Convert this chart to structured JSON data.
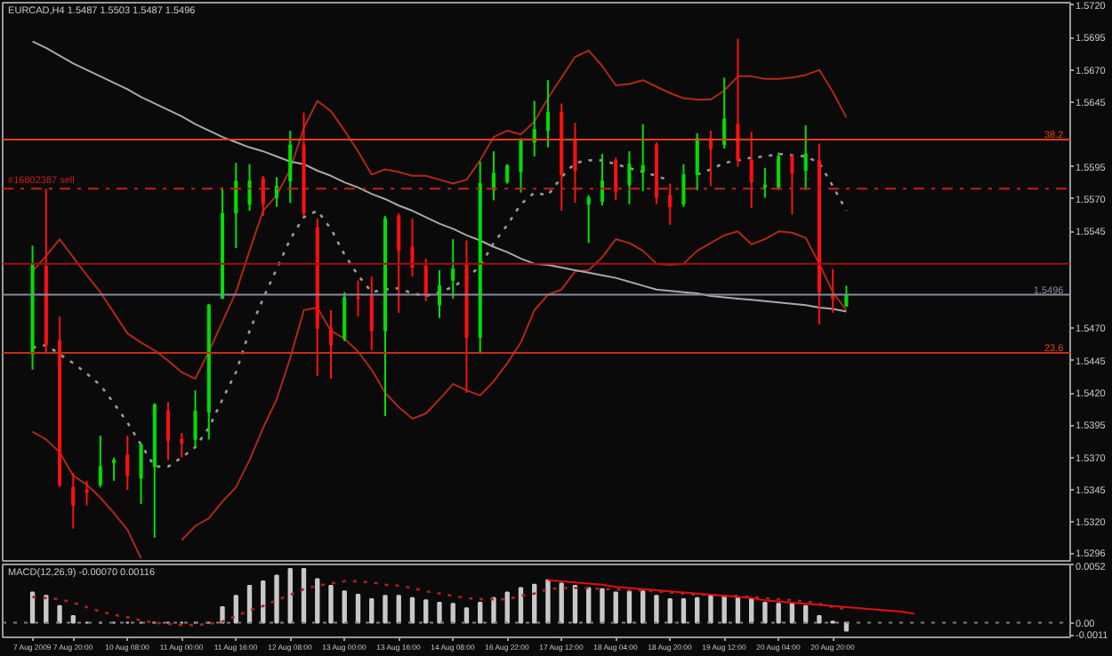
{
  "chart_data": [
    {
      "type": "candlestick",
      "title": "EURCAD,H4  1.5487 1.5503 1.5487 1.5496",
      "tick_labels": "y",
      "categories": [
        null,
        null,
        null,
        null,
        null,
        null,
        null,
        null,
        null,
        null,
        null,
        null,
        null,
        null,
        null,
        null,
        null,
        null,
        null,
        null,
        null,
        null,
        null,
        null,
        null,
        null,
        null,
        null,
        null,
        null,
        null,
        null,
        null,
        null,
        null,
        null,
        null,
        null,
        null,
        null,
        null,
        null,
        null,
        null,
        null,
        null,
        null,
        null,
        null,
        null,
        null,
        null,
        null,
        null,
        null,
        null,
        null,
        null,
        null,
        null,
        null,
        null,
        null,
        null,
        null,
        null,
        null,
        null,
        null,
        null,
        null,
        null,
        null,
        null,
        null,
        null,
        null
      ],
      "ohlc": [
        [
          1.545,
          1.5534,
          1.5438,
          1.552
        ],
        [
          1.5518,
          1.5578,
          1.545,
          1.5457
        ],
        [
          1.5461,
          1.5479,
          1.5347,
          1.5349
        ],
        [
          1.5347,
          1.5358,
          1.5315,
          1.5333
        ],
        [
          1.5345,
          1.5352,
          1.5333,
          1.5343
        ],
        [
          1.5349,
          1.5387,
          1.5347,
          1.5363
        ],
        [
          1.5366,
          1.537,
          1.5352,
          1.5368
        ],
        [
          1.5372,
          1.5387,
          1.5345,
          1.5356
        ],
        [
          1.5354,
          1.5381,
          1.5334,
          1.538
        ],
        [
          1.5363,
          1.5412,
          1.5308,
          1.5411
        ],
        [
          1.5406,
          1.5413,
          1.5368,
          1.5383
        ],
        [
          1.5384,
          1.5389,
          1.537,
          1.5381
        ],
        [
          1.5384,
          1.5422,
          1.5378,
          1.5406
        ],
        [
          1.5405,
          1.5489,
          1.5384,
          1.5488
        ],
        [
          1.5493,
          1.5579,
          1.5493,
          1.5559
        ],
        [
          1.5559,
          1.5598,
          1.5532,
          1.5584
        ],
        [
          1.5566,
          1.5597,
          1.5561,
          1.5584
        ],
        [
          1.5586,
          1.5588,
          1.5557,
          1.5566
        ],
        [
          1.5571,
          1.5587,
          1.5564,
          1.558
        ],
        [
          1.5584,
          1.5623,
          1.5567,
          1.5612
        ],
        [
          1.5612,
          1.5637,
          1.5557,
          1.5559
        ],
        [
          1.5548,
          1.5555,
          1.5433,
          1.547
        ],
        [
          1.547,
          1.5484,
          1.5431,
          1.5457
        ],
        [
          1.5462,
          1.5498,
          1.546,
          1.5494
        ],
        [
          1.5494,
          1.5507,
          1.5479,
          1.5493
        ],
        [
          1.5495,
          1.551,
          1.5453,
          1.5468
        ],
        [
          1.5468,
          1.5557,
          1.5402,
          1.5555
        ],
        [
          1.5557,
          1.5559,
          1.5482,
          1.553
        ],
        [
          1.5533,
          1.5555,
          1.551,
          1.5517
        ],
        [
          1.5518,
          1.5524,
          1.5491,
          1.5495
        ],
        [
          1.5488,
          1.5515,
          1.5478,
          1.5503
        ],
        [
          1.5507,
          1.5539,
          1.5493,
          1.5516
        ],
        [
          1.552,
          1.5538,
          1.542,
          1.5463
        ],
        [
          1.5463,
          1.5599,
          1.545,
          1.5582
        ],
        [
          1.5577,
          1.5607,
          1.5569,
          1.559
        ],
        [
          1.5583,
          1.5597,
          1.5582,
          1.5596
        ],
        [
          1.5591,
          1.5617,
          1.5575,
          1.5615
        ],
        [
          1.5614,
          1.5646,
          1.5603,
          1.5624
        ],
        [
          1.5623,
          1.5662,
          1.561,
          1.5637
        ],
        [
          1.5637,
          1.5644,
          1.5561,
          1.5589
        ],
        [
          1.5616,
          1.5629,
          1.5567,
          1.5592
        ],
        [
          1.5566,
          1.5573,
          1.5536,
          1.5571
        ],
        [
          1.5568,
          1.5605,
          1.5565,
          1.5584
        ],
        [
          1.56,
          1.5602,
          1.5569,
          1.5576
        ],
        [
          1.5581,
          1.5607,
          1.5566,
          1.5597
        ],
        [
          1.5591,
          1.5628,
          1.5576,
          1.5596
        ],
        [
          1.5612,
          1.5614,
          1.5566,
          1.5571
        ],
        [
          1.5573,
          1.5582,
          1.555,
          1.5564
        ],
        [
          1.5566,
          1.5597,
          1.5564,
          1.5589
        ],
        [
          1.5589,
          1.5621,
          1.5577,
          1.5617
        ],
        [
          1.5617,
          1.5623,
          1.558,
          1.5609
        ],
        [
          1.5612,
          1.5664,
          1.5609,
          1.5632
        ],
        [
          1.5628,
          1.5694,
          1.5595,
          1.56
        ],
        [
          1.56,
          1.5622,
          1.5563,
          1.5583
        ],
        [
          1.5579,
          1.5594,
          1.5571,
          1.5581
        ],
        [
          1.5579,
          1.5606,
          1.5577,
          1.5603
        ],
        [
          1.5603,
          1.5605,
          1.5558,
          1.559
        ],
        [
          1.5592,
          1.5627,
          1.5577,
          1.5605
        ],
        [
          1.56,
          1.5613,
          1.5473,
          1.5498
        ],
        [
          1.5496,
          1.5516,
          1.5482,
          1.5493
        ],
        [
          1.5487,
          1.5503,
          1.5487,
          1.5496
        ],
        null,
        null,
        null,
        null,
        null,
        null,
        null,
        null,
        null,
        null,
        null,
        null,
        null,
        null,
        null,
        null
      ],
      "colors": [
        "#00e000",
        "#ff1010",
        "#ff1010",
        "#ff1010",
        "#ff1010",
        "#00e000",
        "#00e000",
        "#ff1010",
        "#00e000",
        "#00e000",
        "#ff1010",
        "#ff1010",
        "#00e000",
        "#00e000",
        "#00e000",
        "#00e000",
        "#00e000",
        "#ff1010",
        "#00e000",
        "#00e000",
        "#ff1010",
        "#ff1010",
        "#ff1010",
        "#00e000",
        "#ff1010",
        "#ff1010",
        "#00e000",
        "#ff1010",
        "#ff1010",
        "#ff1010",
        "#00e000",
        "#00e000",
        "#ff1010",
        "#00e000",
        "#00e000",
        "#00e000",
        "#00e000",
        "#00e000",
        "#00e000",
        "#ff1010",
        "#ff1010",
        "#00e000",
        "#00e000",
        "#ff1010",
        "#00e000",
        "#00e000",
        "#ff1010",
        "#ff1010",
        "#00e000",
        "#00e000",
        "#ff1010",
        "#00e000",
        "#ff1010",
        "#ff1010",
        "#00e000",
        "#00e000",
        "#ff1010",
        "#00e000",
        "#ff1010",
        "#ff1010",
        "#00e000",
        null,
        null,
        null,
        null,
        null,
        null,
        null,
        null,
        null,
        null,
        null,
        null,
        null,
        null,
        null,
        null
      ],
      "series": [
        {
          "type": "line",
          "color": "#b02818",
          "values": [
            1.5514,
            1.5526,
            1.5539,
            1.5525,
            1.5511,
            1.5498,
            1.5482,
            1.5466,
            1.5459,
            1.5453,
            1.5445,
            1.5436,
            1.5431,
            1.5452,
            1.5475,
            1.5498,
            1.553,
            1.5561,
            1.5573,
            1.5593,
            1.5625,
            1.5646,
            1.5638,
            1.5623,
            1.5607,
            1.5589,
            1.5593,
            1.5591,
            1.5588,
            1.5588,
            1.5585,
            1.5582,
            1.5585,
            1.56,
            1.5618,
            1.5623,
            1.562,
            1.563,
            1.5648,
            1.5664,
            1.568,
            1.5685,
            1.5673,
            1.5658,
            1.5659,
            1.5662,
            1.5657,
            1.5652,
            1.5648,
            1.5647,
            1.5647,
            1.5654,
            1.5665,
            1.5665,
            1.5663,
            1.5663,
            1.5664,
            1.5666,
            1.567,
            1.5653,
            1.5633,
            null,
            null,
            null,
            null,
            null,
            null,
            null,
            null,
            null,
            null,
            null,
            null,
            null,
            null,
            null,
            null
          ]
        },
        {
          "type": "line",
          "color": "#b02818",
          "values": [
            1.539,
            1.5384,
            1.5374,
            1.5356,
            1.5349,
            1.5339,
            1.5327,
            1.5314,
            1.5292,
            null,
            null,
            1.5306,
            1.5317,
            1.5323,
            1.5336,
            1.5347,
            1.5368,
            1.5393,
            1.5415,
            1.5447,
            1.5484,
            1.5486,
            1.5468,
            1.5462,
            1.5452,
            1.5438,
            1.542,
            1.5409,
            1.54,
            1.5404,
            1.5415,
            1.5427,
            1.5422,
            1.5418,
            1.5429,
            1.5443,
            1.5459,
            1.5484,
            1.5496,
            1.55,
            1.5514,
            1.5515,
            1.5525,
            1.5539,
            1.5536,
            1.553,
            1.552,
            1.5519,
            1.552,
            1.553,
            1.5536,
            1.5542,
            1.5545,
            1.5535,
            1.5539,
            1.5545,
            1.5544,
            1.554,
            1.552,
            1.5498,
            1.5484,
            null,
            null,
            null,
            null,
            null,
            null,
            null,
            null,
            null,
            null,
            null,
            null,
            null,
            null,
            null,
            null
          ]
        },
        {
          "type": "line",
          "color": "#9a9a9a",
          "line_style": "dotted",
          "values": [
            1.5455,
            1.5457,
            1.545,
            1.5443,
            1.5435,
            1.5426,
            1.5412,
            1.5397,
            1.538,
            1.5363,
            1.5363,
            1.537,
            1.5378,
            1.5393,
            1.5415,
            1.5436,
            1.5468,
            1.5493,
            1.5516,
            1.5539,
            1.5556,
            1.5561,
            1.5547,
            1.5527,
            1.5511,
            1.5498,
            1.55,
            1.5501,
            1.5497,
            1.5495,
            1.5498,
            1.5502,
            1.5509,
            1.5518,
            1.5536,
            1.555,
            1.5566,
            1.5575,
            1.5573,
            1.5587,
            1.5598,
            1.56,
            1.56,
            1.5597,
            1.5594,
            1.5591,
            1.5588,
            1.5584,
            null,
            1.5589,
            1.5593,
            1.5598,
            1.56,
            1.5602,
            1.5603,
            1.5605,
            1.5604,
            1.5603,
            1.5598,
            1.558,
            1.5561,
            null,
            null,
            null,
            null,
            null,
            null,
            null,
            null,
            null,
            null,
            null,
            null,
            null,
            null,
            null,
            null
          ]
        },
        {
          "type": "line",
          "color": "#a8a8a8",
          "values": [
            1.5692,
            1.5687,
            1.5681,
            1.5675,
            1.567,
            1.5665,
            1.566,
            1.5655,
            1.5649,
            1.5644,
            1.5639,
            1.5634,
            1.5628,
            1.5623,
            1.5618,
            1.5614,
            1.561,
            1.5607,
            1.5603,
            1.5599,
            1.5597,
            1.5592,
            1.5588,
            1.5583,
            1.5579,
            1.5574,
            1.557,
            1.5565,
            1.5561,
            1.5556,
            1.5551,
            1.5547,
            1.5542,
            1.5538,
            1.5533,
            1.5529,
            1.5524,
            1.552,
            1.5519,
            1.5517,
            1.5515,
            1.5513,
            1.5511,
            1.5509,
            1.5506,
            1.5503,
            1.55,
            1.5499,
            1.5498,
            1.5497,
            1.5495,
            1.5494,
            1.5493,
            1.5492,
            1.5491,
            1.549,
            1.5489,
            1.5488,
            1.5486,
            1.5485,
            1.5483,
            null,
            null,
            null,
            null,
            null,
            null,
            null,
            null,
            null,
            null,
            null,
            null,
            null,
            null,
            null,
            null
          ]
        }
      ],
      "ylim": [
        1.529,
        1.5722
      ],
      "yticks": [
        {
          "value": 1.572,
          "label": "1.5720"
        },
        {
          "value": 1.5695,
          "label": "1.5695"
        },
        {
          "value": 1.567,
          "label": "1.5670"
        },
        {
          "value": 1.5645,
          "label": "1.5645"
        },
        {
          "value": 1.5595,
          "label": "1.5595"
        },
        {
          "value": 1.557,
          "label": "1.5570"
        },
        {
          "value": 1.5545,
          "label": "1.5545"
        },
        {
          "value": 1.547,
          "label": "1.5470"
        },
        {
          "value": 1.5445,
          "label": "1.5445"
        },
        {
          "value": 1.542,
          "label": "1.5420"
        },
        {
          "value": 1.5395,
          "label": "1.5395"
        },
        {
          "value": 1.537,
          "label": "1.5370"
        },
        {
          "value": 1.5345,
          "label": "1.5345"
        },
        {
          "value": 1.532,
          "label": "1.5320"
        },
        {
          "value": 1.5296,
          "label": "1.5296"
        }
      ],
      "ref_lines": [
        {
          "axis": "y",
          "value": 1.5616,
          "color": "#e04018"
        },
        {
          "axis": "y",
          "value": 1.5578,
          "label": "#16802387 sell",
          "color": "#c81e1e",
          "line_style": "dashed"
        },
        {
          "axis": "y",
          "value": 1.552,
          "color": "#a01010"
        },
        {
          "axis": "y",
          "value": 1.5496,
          "label": "1.5496",
          "color": "#8a8aa0"
        },
        {
          "axis": "y",
          "value": 1.5451,
          "color": "#c03010"
        }
      ],
      "annotations": [
        {
          "text": "38.2",
          "y": 1.5616
        },
        {
          "text": "23.6",
          "y": 1.5451
        }
      ]
    },
    {
      "type": "bar",
      "title": "MACD(12,26,9) -0.00070 0.00116",
      "categories": [
        "7 Aug 2009",
        null,
        null,
        "7 Aug 20:00",
        null,
        null,
        null,
        "10 Aug 08:00",
        null,
        null,
        null,
        "11 Aug 00:00",
        null,
        null,
        null,
        "11 Aug 16:00",
        null,
        null,
        null,
        "12 Aug 08:00",
        null,
        null,
        null,
        "13 Aug 00:00",
        null,
        null,
        null,
        "13 Aug 16:00",
        null,
        null,
        null,
        "14 Aug 08:00",
        null,
        null,
        null,
        "16 Aug 22:00",
        null,
        null,
        null,
        "17 Aug 12:00",
        null,
        null,
        null,
        "18 Aug 04:00",
        null,
        null,
        null,
        "18 Aug 20:00",
        null,
        null,
        null,
        "19 Aug 12:00",
        null,
        null,
        null,
        "20 Aug 04:00",
        null,
        null,
        null,
        "20 Aug 20:00",
        null,
        null,
        null,
        null,
        null,
        null,
        null,
        null,
        null,
        null,
        null,
        null,
        null,
        null,
        null,
        null,
        null
      ],
      "series": [
        {
          "type": "bar",
          "color": "#c8c8c8",
          "values": [
            0.0027,
            0.0024,
            0.0015,
            0.0006,
            0,
            0,
            0,
            0,
            0,
            0,
            0,
            0,
            0,
            0,
            0.0014,
            0.0024,
            0.0033,
            0.0037,
            0.0042,
            0.0048,
            0.0048,
            0.0039,
            0.0033,
            0.0028,
            0.0025,
            0.0021,
            0.0024,
            0.0024,
            0.0022,
            0.002,
            0.0018,
            0.0017,
            0.0013,
            0.0018,
            0.0022,
            0.0027,
            0.0031,
            0.0034,
            0.0038,
            0.0035,
            0.0033,
            0.0031,
            0.003,
            0.0027,
            0.0028,
            0.0028,
            0.0024,
            0.0021,
            0.0021,
            0.0022,
            0.0024,
            0.0024,
            0.0022,
            0.0021,
            0.0018,
            0.0017,
            0.0017,
            0.0015,
            0.0006,
            0.0001,
            -0.0007,
            null,
            null,
            null,
            null,
            null,
            null,
            null,
            null,
            null,
            null,
            null,
            null,
            null,
            null,
            null,
            null
          ]
        },
        {
          "type": "line",
          "color": "#b02020",
          "line_style": "dotted",
          "values": [
            0.0023,
            0.0022,
            0.0021,
            0.0018,
            0.0014,
            0.001,
            0.0007,
            0.0005,
            0.0002,
            0.0,
            -0.0001,
            -0.0002,
            -0.0002,
            -0.0001,
            0.0001,
            0.0006,
            0.0011,
            0.0015,
            0.002,
            0.0025,
            0.003,
            0.0033,
            0.0035,
            0.0037,
            0.0037,
            0.0036,
            0.0034,
            0.0033,
            0.0031,
            0.0028,
            0.0026,
            0.0024,
            0.0022,
            0.0021,
            0.0021,
            0.0021,
            0.0024,
            0.0026,
            0.003,
            0.0031,
            0.0031,
            0.0031,
            0.003,
            0.003,
            0.0029,
            0.0029,
            0.0028,
            0.0027,
            0.0026,
            0.0025,
            0.0025,
            0.0024,
            0.0024,
            0.0023,
            0.0022,
            0.0021,
            0.002,
            0.0019,
            0.0017,
            0.0014,
            0.0012,
            null,
            null,
            null,
            null,
            null,
            null,
            null,
            null,
            null,
            null,
            null,
            null,
            null,
            null,
            null,
            null
          ]
        },
        {
          "type": "line",
          "color": "#e01010",
          "values": [
            null,
            null,
            null,
            null,
            null,
            null,
            null,
            null,
            null,
            null,
            null,
            null,
            null,
            null,
            null,
            null,
            null,
            null,
            null,
            null,
            null,
            null,
            null,
            null,
            null,
            null,
            null,
            null,
            null,
            null,
            null,
            null,
            null,
            null,
            null,
            null,
            null,
            null,
            0.0038,
            0.0037,
            0.0036,
            0.0035,
            0.0034,
            0.0032,
            0.0031,
            0.003,
            0.0029,
            0.0028,
            0.0027,
            0.0026,
            0.0025,
            0.0024,
            0.0023,
            0.0022,
            0.002,
            0.0019,
            0.0018,
            0.0017,
            0.0016,
            0.0015,
            0.0014,
            0.0013,
            0.0012,
            0.0011,
            0.001,
            0.0008,
            null,
            null,
            null,
            null,
            null,
            null,
            null,
            null,
            null,
            null,
            null
          ]
        }
      ],
      "ylim": [
        -0.0013,
        0.0052
      ],
      "yticks": [
        {
          "value": 0.0052,
          "label": "0.0052"
        },
        {
          "value": 0,
          "label": "0.00"
        },
        {
          "value": -0.0011,
          "label": "-0.0011"
        }
      ],
      "ref_lines": [
        {
          "axis": "y",
          "value": 0,
          "color": "#808080",
          "line_style": "dotted"
        }
      ]
    }
  ]
}
